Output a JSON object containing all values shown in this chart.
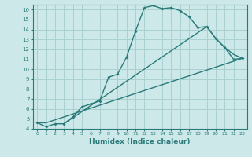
{
  "xlabel": "Humidex (Indice chaleur)",
  "ylabel": "",
  "xlim": [
    -0.5,
    23.5
  ],
  "ylim": [
    4,
    16.5
  ],
  "yticks": [
    4,
    5,
    6,
    7,
    8,
    9,
    10,
    11,
    12,
    13,
    14,
    15,
    16
  ],
  "xticks": [
    0,
    1,
    2,
    3,
    4,
    5,
    6,
    7,
    8,
    9,
    10,
    11,
    12,
    13,
    14,
    15,
    16,
    17,
    18,
    19,
    20,
    21,
    22,
    23
  ],
  "bg_color": "#cce8e8",
  "grid_color": "#aad0d0",
  "line_color": "#2a7a7a",
  "line1_x": [
    0,
    1,
    2,
    3,
    4,
    5,
    6,
    7,
    8,
    9,
    10,
    11,
    12,
    13,
    14,
    15,
    16,
    17,
    18,
    19,
    20,
    21,
    22,
    23
  ],
  "line1_y": [
    4.6,
    4.2,
    4.5,
    4.5,
    5.2,
    6.2,
    6.5,
    6.8,
    9.2,
    9.5,
    11.2,
    13.8,
    16.2,
    16.4,
    16.1,
    16.2,
    15.9,
    15.3,
    14.2,
    14.3,
    13.1,
    12.2,
    11.0,
    11.1
  ],
  "line2_x": [
    0,
    1,
    23
  ],
  "line2_y": [
    4.6,
    4.6,
    11.1
  ],
  "line3_x": [
    3,
    19,
    20,
    21,
    22,
    23
  ],
  "line3_y": [
    4.5,
    14.3,
    13.1,
    12.2,
    11.5,
    11.1
  ]
}
